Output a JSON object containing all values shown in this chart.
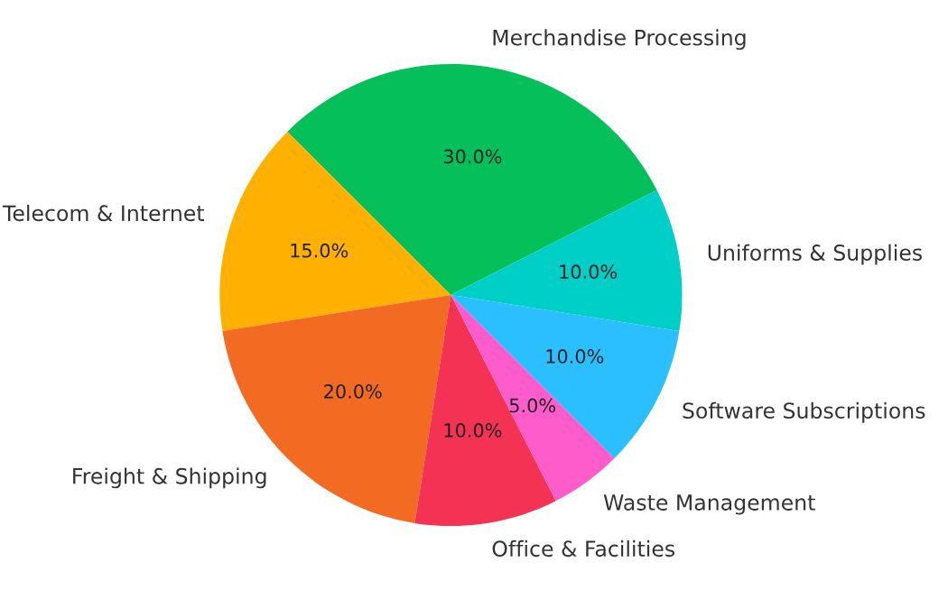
{
  "chart_data": {
    "type": "pie",
    "categories": [
      "Merchandise Processing",
      "Telecom & Internet",
      "Freight & Shipping",
      "Office & Facilities",
      "Waste Management",
      "Software Subscriptions",
      "Uniforms & Supplies"
    ],
    "values": [
      30,
      15,
      20,
      10,
      5,
      10,
      10
    ],
    "colors": [
      "#05c05a",
      "#ffb000",
      "#f36b22",
      "#f43354",
      "#fe5ccb",
      "#2bbfff",
      "#00cfc7"
    ],
    "value_labels": [
      "30.0%",
      "15.0%",
      "20.0%",
      "10.0%",
      "5.0%",
      "10.0%",
      "10.0%"
    ],
    "legend": false
  }
}
